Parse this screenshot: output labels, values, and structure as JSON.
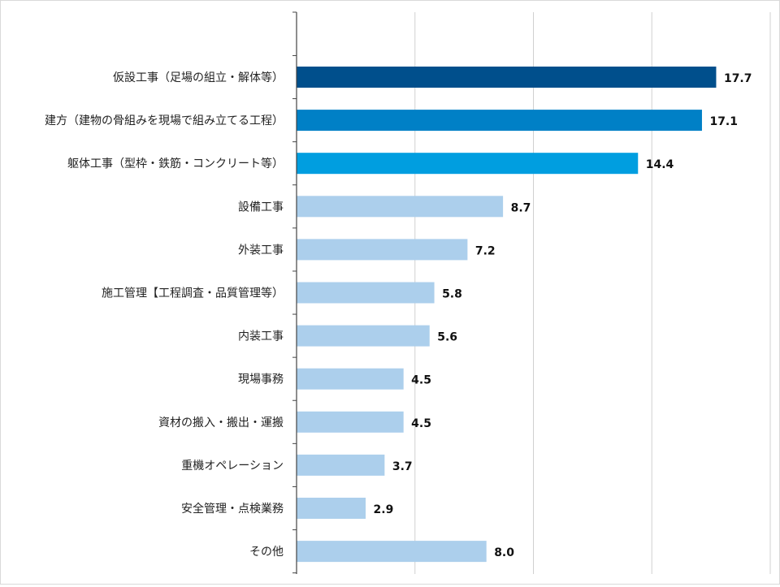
{
  "chart_data": {
    "type": "bar",
    "orientation": "horizontal",
    "categories": [
      "仮設工事（足場の組立・解体等）",
      "建方（建物の骨組みを現場で組み立てる工程）",
      "躯体工事（型枠・鉄筋・コンクリート等）",
      "設備工事",
      "外装工事",
      "施工管理【工程調査・品質管理等）",
      "内装工事",
      "現場事務",
      "資材の搬入・搬出・運搬",
      "重機オペレーション",
      "安全管理・点検業務",
      "その他"
    ],
    "values": [
      17.7,
      17.1,
      14.4,
      8.7,
      7.2,
      5.8,
      5.6,
      4.5,
      4.5,
      3.7,
      2.9,
      8.0
    ],
    "value_labels": [
      "17.7",
      "17.1",
      "14.4",
      "8.7",
      "7.2",
      "5.8",
      "5.6",
      "4.5",
      "4.5",
      "3.7",
      "2.9",
      "8.0"
    ],
    "bar_colors": [
      "#004f8c",
      "#0080c6",
      "#009ee0",
      "#accfec",
      "#accfec",
      "#accfec",
      "#accfec",
      "#accfec",
      "#accfec",
      "#accfec",
      "#accfec",
      "#accfec"
    ],
    "xlim": [
      0,
      20
    ],
    "grid": true,
    "title": "",
    "xlabel": "",
    "ylabel": ""
  },
  "colors": {
    "gridline": "#d0d0d0",
    "axis": "#444444"
  }
}
